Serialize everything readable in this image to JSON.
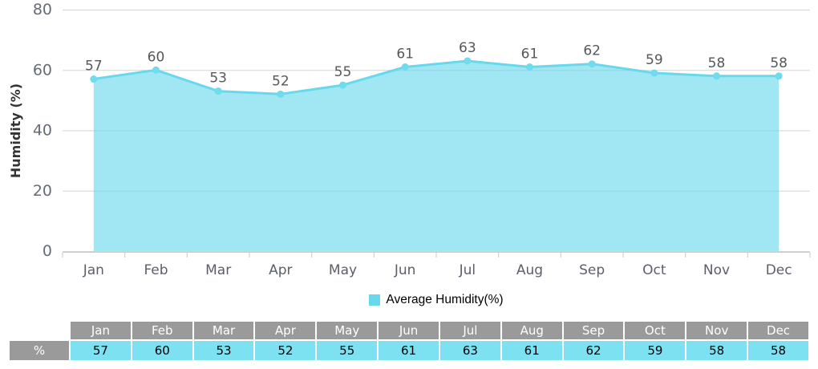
{
  "chart_data": {
    "type": "area",
    "title": "",
    "categories": [
      "Jan",
      "Feb",
      "Mar",
      "Apr",
      "May",
      "Jun",
      "Jul",
      "Aug",
      "Sep",
      "Oct",
      "Nov",
      "Dec"
    ],
    "series": [
      {
        "name": "Average Humidity(%)",
        "values": [
          57,
          60,
          53,
          52,
          55,
          61,
          63,
          61,
          62,
          59,
          58,
          58
        ]
      }
    ],
    "ylabel": "Humidity (%)",
    "xlabel": "",
    "ylim": [
      0,
      80
    ],
    "yticks": [
      0,
      20,
      40,
      60,
      80
    ],
    "grid": true,
    "legend_position": "bottom",
    "point_labels_visible": true
  },
  "legend": {
    "label": "Average Humidity(%)"
  },
  "table": {
    "row_label": "%",
    "columns": [
      "Jan",
      "Feb",
      "Mar",
      "Apr",
      "May",
      "Jun",
      "Jul",
      "Aug",
      "Sep",
      "Oct",
      "Nov",
      "Dec"
    ],
    "values": [
      "57",
      "60",
      "53",
      "52",
      "55",
      "61",
      "63",
      "61",
      "62",
      "59",
      "58",
      "58"
    ]
  },
  "colors": {
    "series_line": "#68d9ec",
    "series_marker": "#6edbee",
    "series_fill": "#68d9ec",
    "series_fill_opacity": "0.62",
    "table_cell_cyan": "#7de1f1",
    "table_cell_gray": "#9a9a9a",
    "gridline": "#d5d5d5",
    "axis_line": "#c9c9c9",
    "ytick_text": "#666c77",
    "xtick_text": "#5b5f68",
    "value_label_text": "#55585b",
    "axis_title_text": "#333333",
    "legend_text": "#000000"
  }
}
